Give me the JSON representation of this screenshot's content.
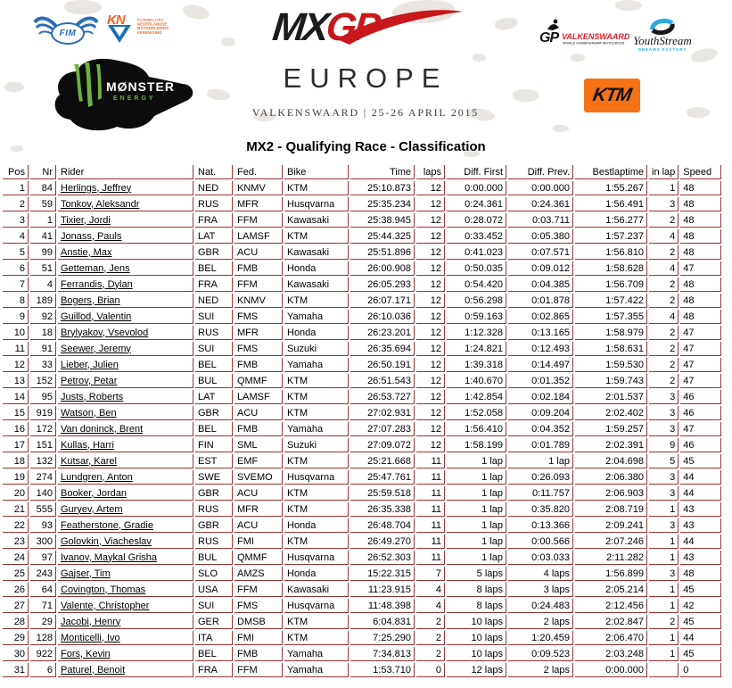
{
  "header": {
    "fim": {
      "label": "FIM"
    },
    "knmv": {
      "initials": "KN",
      "lines": [
        "KONINKLIJKE",
        "NEDERLANDSE",
        "MOTORRIJDERS",
        "VERENIGING"
      ]
    },
    "mxgp_logo": {
      "mx": "MX",
      "gp": "GP"
    },
    "monster": {
      "name": "MØNSTER",
      "sub": "ENERGY"
    },
    "series_title": "EUROPE",
    "event_line": "VALKENSWAARD | 25-26 APRIL 2015",
    "gp_valkenswaard": {
      "gp": "GP",
      "name": "VALKENSWAARD",
      "sub": "WORLD CHAMPIONSHIP MOTOCROSS"
    },
    "youthstream": {
      "name": "YouthStream",
      "sub": "DREAMS FACTORY"
    },
    "ktm": {
      "label": "KTM"
    }
  },
  "title": "MX2 - Qualifying Race - Classification",
  "colors": {
    "table_border": "#993333",
    "ktm_orange": "#f47216",
    "mxgp_red": "#c8181b",
    "monster_green": "#6cb33f",
    "fim_blue": "#2a6db5",
    "knmv_orange": "#f26522",
    "knmv_blue": "#1d70b7",
    "youthstream_blue": "#29abe2",
    "valkenswaard_red": "#d81f26"
  },
  "table": {
    "columns": [
      "Pos",
      "Nr",
      "Rider",
      "Nat.",
      "Fed.",
      "Bike",
      "Time",
      "laps",
      "Diff. First",
      "Diff. Prev.",
      "Bestlaptime",
      "in lap",
      "Speed"
    ],
    "rows": [
      [
        "1",
        "84",
        "Herlings, Jeffrey",
        "NED",
        "KNMV",
        "KTM",
        "25:10.873",
        "12",
        "0:00.000",
        "0:00.000",
        "1:55.267",
        "1",
        "48"
      ],
      [
        "2",
        "59",
        "Tonkov, Aleksandr",
        "RUS",
        "MFR",
        "Husqvarna",
        "25:35.234",
        "12",
        "0:24.361",
        "0:24.361",
        "1:56.491",
        "3",
        "48"
      ],
      [
        "3",
        "1",
        "Tixier, Jordi",
        "FRA",
        "FFM",
        "Kawasaki",
        "25:38.945",
        "12",
        "0:28.072",
        "0:03.711",
        "1:56.277",
        "2",
        "48"
      ],
      [
        "4",
        "41",
        "Jonass, Pauls",
        "LAT",
        "LAMSF",
        "KTM",
        "25:44.325",
        "12",
        "0:33.452",
        "0:05.380",
        "1:57.237",
        "4",
        "48"
      ],
      [
        "5",
        "99",
        "Anstie, Max",
        "GBR",
        "ACU",
        "Kawasaki",
        "25:51.896",
        "12",
        "0:41.023",
        "0:07.571",
        "1:56.810",
        "2",
        "48"
      ],
      [
        "6",
        "51",
        "Getteman, Jens",
        "BEL",
        "FMB",
        "Honda",
        "26:00.908",
        "12",
        "0:50.035",
        "0:09.012",
        "1:58.628",
        "4",
        "47"
      ],
      [
        "7",
        "4",
        "Ferrandis, Dylan",
        "FRA",
        "FFM",
        "Kawasaki",
        "26:05.293",
        "12",
        "0:54.420",
        "0:04.385",
        "1:56.709",
        "2",
        "48"
      ],
      [
        "8",
        "189",
        "Bogers, Brian",
        "NED",
        "KNMV",
        "KTM",
        "26:07.171",
        "12",
        "0:56.298",
        "0:01.878",
        "1:57.422",
        "2",
        "48"
      ],
      [
        "9",
        "92",
        "Guillod, Valentin",
        "SUI",
        "FMS",
        "Yamaha",
        "26:10.036",
        "12",
        "0:59.163",
        "0:02.865",
        "1:57.355",
        "4",
        "48"
      ],
      [
        "10",
        "18",
        "Brylyakov, Vsevolod",
        "RUS",
        "MFR",
        "Honda",
        "26:23.201",
        "12",
        "1:12.328",
        "0:13.165",
        "1:58.979",
        "2",
        "47"
      ],
      [
        "11",
        "91",
        "Seewer, Jeremy",
        "SUI",
        "FMS",
        "Suzuki",
        "26:35.694",
        "12",
        "1:24.821",
        "0:12.493",
        "1:58.631",
        "2",
        "47"
      ],
      [
        "12",
        "33",
        "Lieber, Julien",
        "BEL",
        "FMB",
        "Yamaha",
        "26:50.191",
        "12",
        "1:39.318",
        "0:14.497",
        "1:59.530",
        "2",
        "47"
      ],
      [
        "13",
        "152",
        "Petrov, Petar",
        "BUL",
        "QMMF",
        "KTM",
        "26:51.543",
        "12",
        "1:40.670",
        "0:01.352",
        "1:59.743",
        "2",
        "47"
      ],
      [
        "14",
        "95",
        "Justs, Roberts",
        "LAT",
        "LAMSF",
        "KTM",
        "26:53.727",
        "12",
        "1:42.854",
        "0:02.184",
        "2:01.537",
        "3",
        "46"
      ],
      [
        "15",
        "919",
        "Watson, Ben",
        "GBR",
        "ACU",
        "KTM",
        "27:02.931",
        "12",
        "1:52.058",
        "0:09.204",
        "2:02.402",
        "3",
        "46"
      ],
      [
        "16",
        "172",
        "Van doninck, Brent",
        "BEL",
        "FMB",
        "Yamaha",
        "27:07.283",
        "12",
        "1:56.410",
        "0:04.352",
        "1:59.257",
        "3",
        "47"
      ],
      [
        "17",
        "151",
        "Kullas, Harri",
        "FIN",
        "SML",
        "Suzuki",
        "27:09.072",
        "12",
        "1:58.199",
        "0:01.789",
        "2:02.391",
        "9",
        "46"
      ],
      [
        "18",
        "132",
        "Kutsar, Karel",
        "EST",
        "EMF",
        "KTM",
        "25:21.668",
        "11",
        "1 lap",
        "1 lap",
        "2:04.698",
        "5",
        "45"
      ],
      [
        "19",
        "274",
        "Lundgren, Anton",
        "SWE",
        "SVEMO",
        "Husqvarna",
        "25:47.761",
        "11",
        "1 lap",
        "0:26.093",
        "2:06.380",
        "3",
        "44"
      ],
      [
        "20",
        "140",
        "Booker, Jordan",
        "GBR",
        "ACU",
        "KTM",
        "25:59.518",
        "11",
        "1 lap",
        "0:11.757",
        "2:06.903",
        "3",
        "44"
      ],
      [
        "21",
        "555",
        "Guryev, Artem",
        "RUS",
        "MFR",
        "KTM",
        "26:35.338",
        "11",
        "1 lap",
        "0:35.820",
        "2:08.719",
        "1",
        "43"
      ],
      [
        "22",
        "93",
        "Featherstone, Gradie",
        "GBR",
        "ACU",
        "Honda",
        "26:48.704",
        "11",
        "1 lap",
        "0:13.366",
        "2:09.241",
        "3",
        "43"
      ],
      [
        "23",
        "300",
        "Golovkin, Viacheslav",
        "RUS",
        "FMI",
        "KTM",
        "26:49.270",
        "11",
        "1 lap",
        "0:00.566",
        "2:07.246",
        "1",
        "44"
      ],
      [
        "24",
        "97",
        "Ivanov, Maykal Grisha",
        "BUL",
        "QMMF",
        "Husqvarna",
        "26:52.303",
        "11",
        "1 lap",
        "0:03.033",
        "2:11.282",
        "1",
        "43"
      ],
      [
        "25",
        "243",
        "Gajser, Tim",
        "SLO",
        "AMZS",
        "Honda",
        "15:22.315",
        "7",
        "5 laps",
        "4 laps",
        "1:56.899",
        "3",
        "48"
      ],
      [
        "26",
        "64",
        "Covington, Thomas",
        "USA",
        "FFM",
        "Kawasaki",
        "11:23.915",
        "4",
        "8 laps",
        "3 laps",
        "2:05.214",
        "1",
        "45"
      ],
      [
        "27",
        "71",
        "Valente, Christopher",
        "SUI",
        "FMS",
        "Husqvarna",
        "11:48.398",
        "4",
        "8 laps",
        "0:24.483",
        "2:12.456",
        "1",
        "42"
      ],
      [
        "28",
        "29",
        "Jacobi, Henry",
        "GER",
        "DMSB",
        "KTM",
        "6:04.831",
        "2",
        "10 laps",
        "2 laps",
        "2:02.847",
        "2",
        "45"
      ],
      [
        "29",
        "128",
        "Monticelli, Ivo",
        "ITA",
        "FMI",
        "KTM",
        "7:25.290",
        "2",
        "10 laps",
        "1:20.459",
        "2:06.470",
        "1",
        "44"
      ],
      [
        "30",
        "922",
        "Fors, Kevin",
        "BEL",
        "FMB",
        "Yamaha",
        "7:34.813",
        "2",
        "10 laps",
        "0:09.523",
        "2:03.248",
        "1",
        "45"
      ],
      [
        "31",
        "6",
        "Paturel, Benoit",
        "FRA",
        "FFM",
        "Yamaha",
        "1:53.710",
        "0",
        "12 laps",
        "2 laps",
        "0:00.000",
        "",
        "0"
      ]
    ]
  }
}
